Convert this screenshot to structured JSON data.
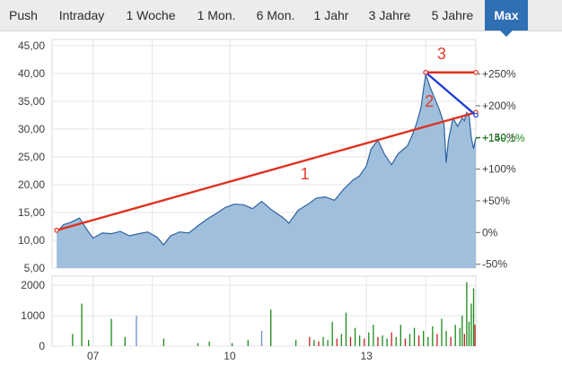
{
  "tabs": [
    {
      "label": "Push",
      "active": false
    },
    {
      "label": "Intraday",
      "active": false
    },
    {
      "label": "1 Woche",
      "active": false
    },
    {
      "label": "1 Mon.",
      "active": false
    },
    {
      "label": "6 Mon.",
      "active": false
    },
    {
      "label": "1 Jahr",
      "active": false
    },
    {
      "label": "3 Jahre",
      "active": false
    },
    {
      "label": "5 Jahre",
      "active": false
    },
    {
      "label": "Max",
      "active": true
    }
  ],
  "colors": {
    "area_fill": "#9fbfdc",
    "area_line": "#2f62a0",
    "trendline": "#e0301e",
    "channel_line": "#1f3fd8",
    "volume_up": "#1a8a1a",
    "volume_down": "#c42020",
    "volume_neutral": "#6a8cc8",
    "current_value": "#1a8a1a"
  },
  "chart_data": [
    {
      "type": "area",
      "name": "price",
      "y_ticks": [
        "45,00",
        "40,00",
        "35,00",
        "30,00",
        "25,00",
        "20,00",
        "15,00",
        "10,00",
        "5,00"
      ],
      "y_tick_values": [
        45,
        40,
        35,
        30,
        25,
        20,
        15,
        10,
        5
      ],
      "ylim": [
        5,
        45
      ],
      "right_ticks": [
        "+250%",
        "+200%",
        "+150%",
        "+100%",
        "+50%",
        "0%",
        "-50%"
      ],
      "right_tick_values": [
        250,
        200,
        150,
        100,
        50,
        0,
        -50
      ],
      "right_reference_price": 11.4,
      "current_value_label": "+149,1%",
      "current_value": 149.1,
      "x_ticks": [
        "07",
        "10",
        "13"
      ],
      "x_tick_years": [
        2007,
        2010,
        2013
      ],
      "xlim": [
        2006.1,
        2015.4
      ],
      "grid": true,
      "series": [
        {
          "x": [
            2006.2,
            2006.35,
            2006.5,
            2006.7,
            2006.9,
            2007.0,
            2007.2,
            2007.4,
            2007.6,
            2007.8,
            2008.0,
            2008.2,
            2008.4,
            2008.55,
            2008.7,
            2008.9,
            2009.1,
            2009.3,
            2009.5,
            2009.7,
            2009.9,
            2010.1,
            2010.3,
            2010.5,
            2010.7,
            2010.9,
            2011.0,
            2011.15,
            2011.3,
            2011.5,
            2011.7,
            2011.9,
            2012.1,
            2012.3,
            2012.5,
            2012.7,
            2012.85,
            2013.0,
            2013.1,
            2013.25,
            2013.4,
            2013.55,
            2013.7,
            2013.9,
            2014.0,
            2014.1,
            2014.2,
            2014.25,
            2014.3,
            2014.4,
            2014.5,
            2014.6,
            2014.7,
            2014.75,
            2014.8,
            2014.9,
            2015.0,
            2015.1,
            2015.15,
            2015.2,
            2015.25,
            2015.3,
            2015.35,
            2015.4
          ],
          "values": [
            11.4,
            12.8,
            13.2,
            14.0,
            11.5,
            10.4,
            11.3,
            11.2,
            11.6,
            10.8,
            11.2,
            11.5,
            10.6,
            9.2,
            10.8,
            11.5,
            11.3,
            12.6,
            13.8,
            14.8,
            15.9,
            16.5,
            16.4,
            15.7,
            17.0,
            15.6,
            15.0,
            14.2,
            13.1,
            15.4,
            16.4,
            17.6,
            17.8,
            17.2,
            19.2,
            20.8,
            21.6,
            23.4,
            26.4,
            28.0,
            25.4,
            23.6,
            25.6,
            27.0,
            28.8,
            31.0,
            34.0,
            37.0,
            39.8,
            37.5,
            35.5,
            33.5,
            31.0,
            24.0,
            28.0,
            32.0,
            30.5,
            32.0,
            31.5,
            33.0,
            32.5,
            28.5,
            26.5,
            28.4
          ]
        }
      ],
      "trendlines": [
        {
          "label": "1",
          "from": [
            2006.2,
            11.8
          ],
          "to": [
            2015.4,
            33.0
          ]
        },
        {
          "label": "2",
          "from": [
            2014.3,
            40.2
          ],
          "to": [
            2015.4,
            32.5
          ]
        },
        {
          "label": "3",
          "from": [
            2014.3,
            40.2
          ],
          "to": [
            2015.4,
            40.2
          ]
        }
      ]
    },
    {
      "type": "bar",
      "name": "volume",
      "y_ticks": [
        "2000",
        "1000",
        "0"
      ],
      "y_tick_values": [
        2000,
        1000,
        0
      ],
      "ylim": [
        0,
        2300
      ],
      "xlim": [
        2006.1,
        2015.4
      ],
      "grid": true,
      "bars": [
        {
          "x": 2006.55,
          "value": 400,
          "dir": "up"
        },
        {
          "x": 2006.75,
          "value": 1400,
          "dir": "up"
        },
        {
          "x": 2006.9,
          "value": 200,
          "dir": "up"
        },
        {
          "x": 2007.4,
          "value": 900,
          "dir": "up"
        },
        {
          "x": 2007.7,
          "value": 300,
          "dir": "up"
        },
        {
          "x": 2007.95,
          "value": 1000,
          "dir": "neutral"
        },
        {
          "x": 2008.55,
          "value": 250,
          "dir": "up"
        },
        {
          "x": 2009.3,
          "value": 100,
          "dir": "up"
        },
        {
          "x": 2009.55,
          "value": 150,
          "dir": "up"
        },
        {
          "x": 2010.05,
          "value": 100,
          "dir": "up"
        },
        {
          "x": 2010.4,
          "value": 200,
          "dir": "up"
        },
        {
          "x": 2010.7,
          "value": 500,
          "dir": "neutral"
        },
        {
          "x": 2010.9,
          "value": 1200,
          "dir": "up"
        },
        {
          "x": 2011.45,
          "value": 200,
          "dir": "up"
        },
        {
          "x": 2011.75,
          "value": 300,
          "dir": "down"
        },
        {
          "x": 2011.85,
          "value": 200,
          "dir": "up"
        },
        {
          "x": 2011.95,
          "value": 150,
          "dir": "down"
        },
        {
          "x": 2012.05,
          "value": 300,
          "dir": "up"
        },
        {
          "x": 2012.15,
          "value": 200,
          "dir": "up"
        },
        {
          "x": 2012.25,
          "value": 800,
          "dir": "up"
        },
        {
          "x": 2012.35,
          "value": 250,
          "dir": "down"
        },
        {
          "x": 2012.45,
          "value": 400,
          "dir": "up"
        },
        {
          "x": 2012.55,
          "value": 1100,
          "dir": "up"
        },
        {
          "x": 2012.65,
          "value": 300,
          "dir": "down"
        },
        {
          "x": 2012.75,
          "value": 600,
          "dir": "up"
        },
        {
          "x": 2012.85,
          "value": 350,
          "dir": "up"
        },
        {
          "x": 2012.95,
          "value": 250,
          "dir": "down"
        },
        {
          "x": 2013.05,
          "value": 450,
          "dir": "up"
        },
        {
          "x": 2013.15,
          "value": 700,
          "dir": "up"
        },
        {
          "x": 2013.25,
          "value": 300,
          "dir": "down"
        },
        {
          "x": 2013.35,
          "value": 350,
          "dir": "up"
        },
        {
          "x": 2013.45,
          "value": 250,
          "dir": "up"
        },
        {
          "x": 2013.55,
          "value": 450,
          "dir": "down"
        },
        {
          "x": 2013.65,
          "value": 300,
          "dir": "up"
        },
        {
          "x": 2013.75,
          "value": 700,
          "dir": "up"
        },
        {
          "x": 2013.85,
          "value": 250,
          "dir": "down"
        },
        {
          "x": 2013.95,
          "value": 400,
          "dir": "up"
        },
        {
          "x": 2014.05,
          "value": 600,
          "dir": "up"
        },
        {
          "x": 2014.15,
          "value": 350,
          "dir": "down"
        },
        {
          "x": 2014.25,
          "value": 500,
          "dir": "up"
        },
        {
          "x": 2014.35,
          "value": 300,
          "dir": "up"
        },
        {
          "x": 2014.45,
          "value": 650,
          "dir": "up"
        },
        {
          "x": 2014.55,
          "value": 400,
          "dir": "down"
        },
        {
          "x": 2014.65,
          "value": 900,
          "dir": "up"
        },
        {
          "x": 2014.75,
          "value": 500,
          "dir": "up"
        },
        {
          "x": 2014.85,
          "value": 300,
          "dir": "down"
        },
        {
          "x": 2014.95,
          "value": 700,
          "dir": "up"
        },
        {
          "x": 2015.05,
          "value": 600,
          "dir": "up"
        },
        {
          "x": 2015.1,
          "value": 1000,
          "dir": "up"
        },
        {
          "x": 2015.15,
          "value": 400,
          "dir": "down"
        },
        {
          "x": 2015.2,
          "value": 2100,
          "dir": "up"
        },
        {
          "x": 2015.25,
          "value": 800,
          "dir": "up"
        },
        {
          "x": 2015.3,
          "value": 1400,
          "dir": "up"
        },
        {
          "x": 2015.35,
          "value": 1900,
          "dir": "up"
        },
        {
          "x": 2015.38,
          "value": 700,
          "dir": "down"
        }
      ]
    }
  ]
}
